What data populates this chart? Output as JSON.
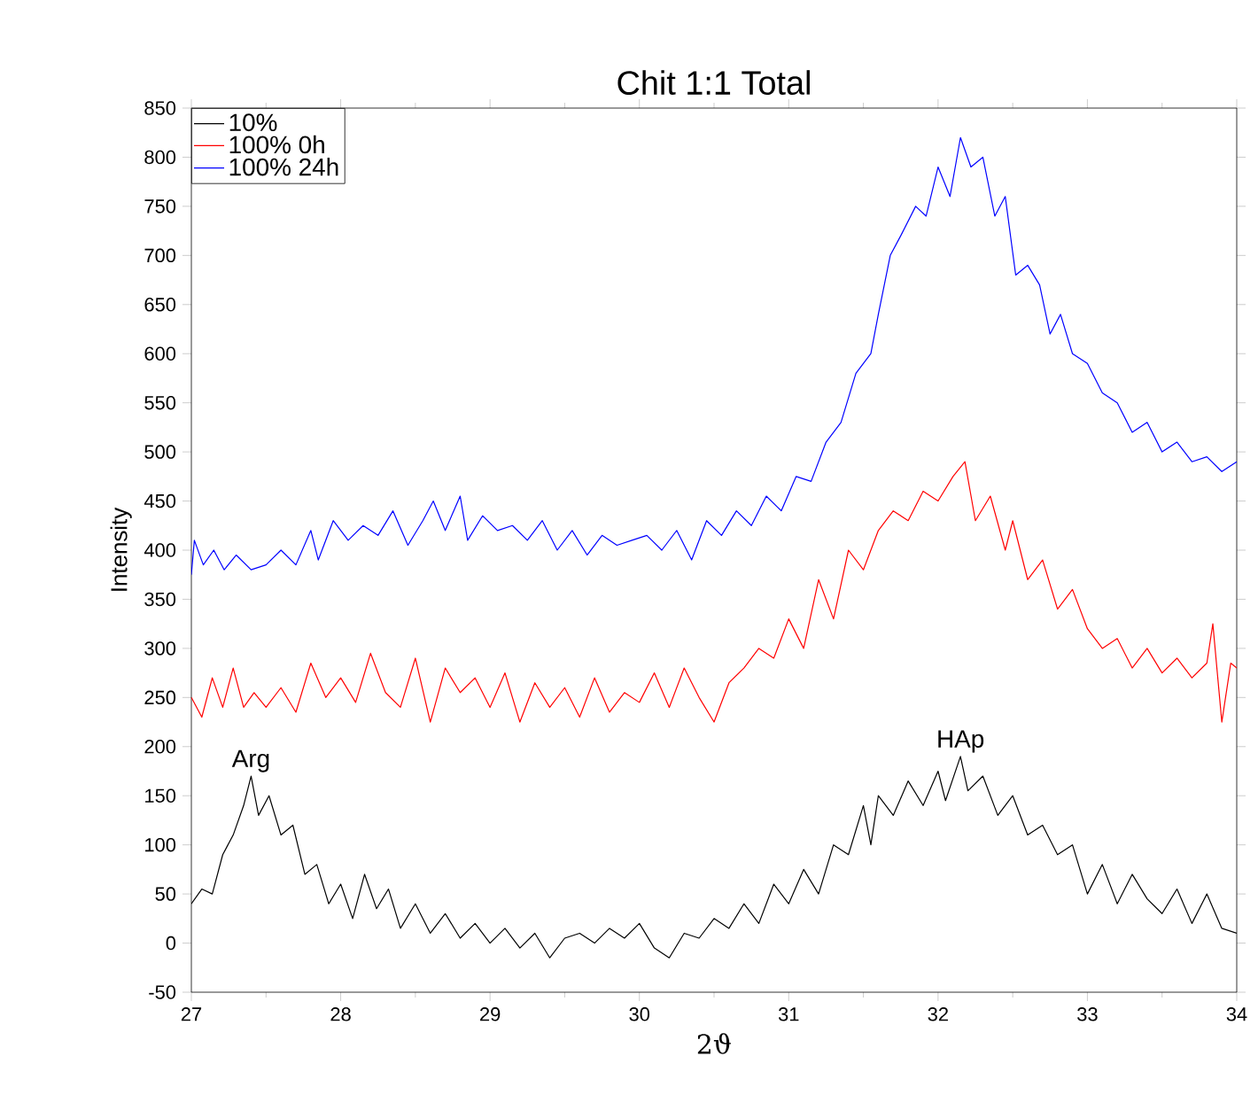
{
  "chart_data": {
    "type": "line",
    "title": "Chit 1:1 Total",
    "xlabel": "2ϑ",
    "ylabel": "Intensity",
    "xlim": [
      27,
      34
    ],
    "xticks": [
      27,
      28,
      29,
      30,
      31,
      32,
      33,
      34
    ],
    "ylim": [
      -50,
      850
    ],
    "yticks": [
      -50,
      0,
      50,
      100,
      150,
      200,
      250,
      300,
      350,
      400,
      450,
      500,
      550,
      600,
      650,
      700,
      750,
      800,
      850
    ],
    "legend": "top left",
    "grid": false,
    "marker": "none",
    "line_style": "solid",
    "annotations": [
      {
        "text": "Arg",
        "x": 27.4,
        "y": 170
      },
      {
        "text": "HAp",
        "x": 32.15,
        "y": 190
      }
    ],
    "series": [
      {
        "name": "10%",
        "color": "#000000",
        "x": [
          27.0,
          27.07,
          27.14,
          27.21,
          27.28,
          27.35,
          27.4,
          27.45,
          27.52,
          27.6,
          27.68,
          27.76,
          27.84,
          27.92,
          28.0,
          28.08,
          28.16,
          28.24,
          28.32,
          28.4,
          28.5,
          28.6,
          28.7,
          28.8,
          28.9,
          29.0,
          29.1,
          29.2,
          29.3,
          29.4,
          29.5,
          29.6,
          29.7,
          29.8,
          29.9,
          30.0,
          30.1,
          30.2,
          30.3,
          30.4,
          30.5,
          30.6,
          30.7,
          30.8,
          30.9,
          31.0,
          31.1,
          31.2,
          31.3,
          31.4,
          31.5,
          31.55,
          31.6,
          31.7,
          31.8,
          31.9,
          32.0,
          32.05,
          32.15,
          32.2,
          32.3,
          32.4,
          32.5,
          32.6,
          32.7,
          32.8,
          32.9,
          33.0,
          33.1,
          33.2,
          33.3,
          33.4,
          33.5,
          33.6,
          33.7,
          33.8,
          33.9,
          34.0
        ],
        "values": [
          40,
          55,
          50,
          90,
          110,
          140,
          170,
          130,
          150,
          110,
          120,
          70,
          80,
          40,
          60,
          25,
          70,
          35,
          55,
          15,
          40,
          10,
          30,
          5,
          20,
          0,
          15,
          -5,
          10,
          -15,
          5,
          10,
          0,
          15,
          5,
          20,
          -5,
          -15,
          10,
          5,
          25,
          15,
          40,
          20,
          60,
          40,
          75,
          50,
          100,
          90,
          140,
          100,
          150,
          130,
          165,
          140,
          175,
          145,
          190,
          155,
          170,
          130,
          150,
          110,
          120,
          90,
          100,
          50,
          80,
          40,
          70,
          45,
          30,
          55,
          20,
          50,
          15,
          10
        ]
      },
      {
        "name": "100% 0h",
        "color": "#ff0000",
        "x": [
          27.0,
          27.07,
          27.14,
          27.21,
          27.28,
          27.35,
          27.42,
          27.5,
          27.6,
          27.7,
          27.8,
          27.9,
          28.0,
          28.1,
          28.2,
          28.3,
          28.4,
          28.5,
          28.6,
          28.7,
          28.8,
          28.9,
          29.0,
          29.1,
          29.2,
          29.3,
          29.4,
          29.5,
          29.6,
          29.7,
          29.8,
          29.9,
          30.0,
          30.1,
          30.2,
          30.3,
          30.4,
          30.5,
          30.6,
          30.7,
          30.8,
          30.9,
          31.0,
          31.1,
          31.2,
          31.3,
          31.4,
          31.5,
          31.6,
          31.7,
          31.8,
          31.9,
          32.0,
          32.1,
          32.18,
          32.25,
          32.35,
          32.45,
          32.5,
          32.6,
          32.7,
          32.8,
          32.9,
          33.0,
          33.1,
          33.2,
          33.3,
          33.4,
          33.5,
          33.6,
          33.7,
          33.8,
          33.84,
          33.9,
          33.96,
          34.0
        ],
        "values": [
          250,
          230,
          270,
          240,
          280,
          240,
          255,
          240,
          260,
          235,
          285,
          250,
          270,
          245,
          295,
          255,
          240,
          290,
          225,
          280,
          255,
          270,
          240,
          275,
          225,
          265,
          240,
          260,
          230,
          270,
          235,
          255,
          245,
          275,
          240,
          280,
          250,
          225,
          265,
          280,
          300,
          290,
          330,
          300,
          370,
          330,
          400,
          380,
          420,
          440,
          430,
          460,
          450,
          475,
          490,
          430,
          455,
          400,
          430,
          370,
          390,
          340,
          360,
          320,
          300,
          310,
          280,
          300,
          275,
          290,
          270,
          285,
          325,
          225,
          285,
          280
        ]
      },
      {
        "name": "100% 24h",
        "color": "#0000ff",
        "x": [
          27.0,
          27.02,
          27.08,
          27.15,
          27.22,
          27.3,
          27.4,
          27.5,
          27.6,
          27.7,
          27.8,
          27.85,
          27.95,
          28.05,
          28.15,
          28.25,
          28.35,
          28.45,
          28.55,
          28.62,
          28.7,
          28.8,
          28.85,
          28.95,
          29.05,
          29.15,
          29.25,
          29.35,
          29.45,
          29.55,
          29.65,
          29.75,
          29.85,
          29.95,
          30.05,
          30.15,
          30.25,
          30.35,
          30.45,
          30.55,
          30.65,
          30.75,
          30.85,
          30.95,
          31.05,
          31.15,
          31.25,
          31.35,
          31.45,
          31.55,
          31.6,
          31.68,
          31.75,
          31.85,
          31.92,
          32.0,
          32.08,
          32.15,
          32.22,
          32.3,
          32.38,
          32.45,
          32.52,
          32.6,
          32.68,
          32.75,
          32.82,
          32.9,
          33.0,
          33.1,
          33.2,
          33.3,
          33.4,
          33.5,
          33.6,
          33.7,
          33.8,
          33.9,
          34.0
        ],
        "values": [
          375,
          410,
          385,
          400,
          380,
          395,
          380,
          385,
          400,
          385,
          420,
          390,
          430,
          410,
          425,
          415,
          440,
          405,
          430,
          450,
          420,
          455,
          410,
          435,
          420,
          425,
          410,
          430,
          400,
          420,
          395,
          415,
          405,
          410,
          415,
          400,
          420,
          390,
          430,
          415,
          440,
          425,
          455,
          440,
          475,
          470,
          510,
          530,
          580,
          600,
          640,
          700,
          720,
          750,
          740,
          790,
          760,
          820,
          790,
          800,
          740,
          760,
          680,
          690,
          670,
          620,
          640,
          600,
          590,
          560,
          550,
          520,
          530,
          500,
          510,
          490,
          495,
          480,
          490
        ]
      }
    ]
  }
}
